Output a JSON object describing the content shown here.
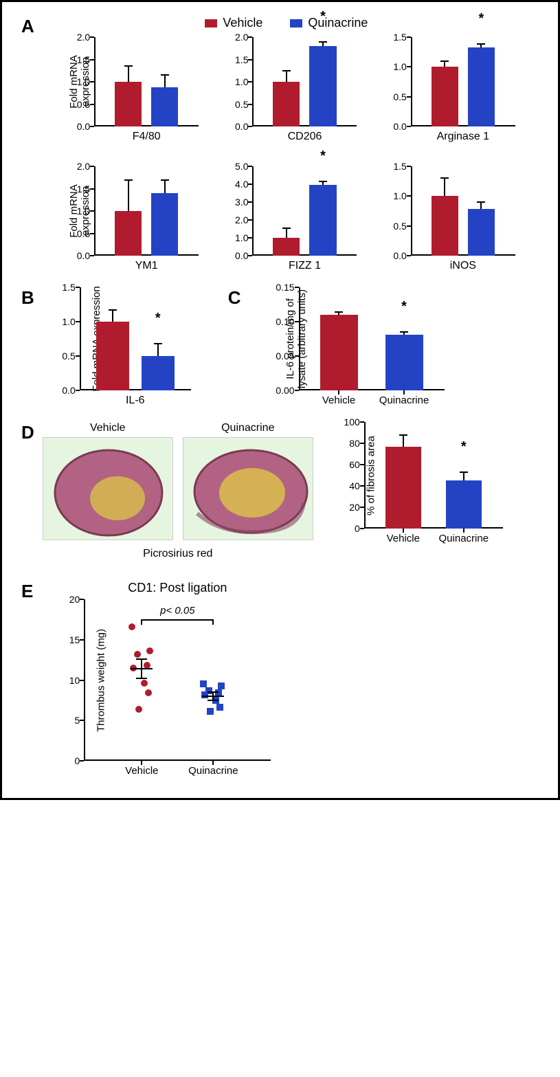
{
  "colors": {
    "vehicle": "#b01c2e",
    "quinacrine": "#2443c4",
    "axis": "#000000",
    "background": "#ffffff",
    "histology_bg": "#e6f5df",
    "tissue_main": "#b26383",
    "tissue_light": "#d8b94f"
  },
  "legend": {
    "vehicle": "Vehicle",
    "quinacrine": "Quinacrine"
  },
  "panels": {
    "A": {
      "label": "A",
      "ylab": "Fold mRNA\nexpression",
      "charts": [
        {
          "name": "F4/80",
          "ymax": 2.0,
          "ystep": 0.5,
          "vehicle": 1.0,
          "vehicle_err": 0.35,
          "quin": 0.88,
          "quin_err": 0.27,
          "sig": false
        },
        {
          "name": "CD206",
          "ymax": 2.0,
          "ystep": 0.5,
          "vehicle": 1.0,
          "vehicle_err": 0.25,
          "quin": 1.8,
          "quin_err": 0.1,
          "sig": true
        },
        {
          "name": "Arginase 1",
          "ymax": 1.5,
          "ystep": 0.5,
          "vehicle": 1.0,
          "vehicle_err": 0.1,
          "quin": 1.33,
          "quin_err": 0.06,
          "sig": true
        },
        {
          "name": "YM1",
          "ymax": 2.0,
          "ystep": 0.5,
          "vehicle": 1.0,
          "vehicle_err": 0.7,
          "quin": 1.4,
          "quin_err": 0.3,
          "sig": false
        },
        {
          "name": "FIZZ 1",
          "ymax": 5.0,
          "ystep": 1.0,
          "vehicle": 1.0,
          "vehicle_err": 0.55,
          "quin": 3.95,
          "quin_err": 0.2,
          "sig": true
        },
        {
          "name": "iNOS",
          "ymax": 1.5,
          "ystep": 0.5,
          "vehicle": 1.0,
          "vehicle_err": 0.3,
          "quin": 0.78,
          "quin_err": 0.12,
          "sig": false
        }
      ]
    },
    "B": {
      "label": "B",
      "ylab": "Fold mRNA expression",
      "chart": {
        "name": "IL-6",
        "ymax": 1.5,
        "ystep": 0.5,
        "vehicle": 1.0,
        "vehicle_err": 0.17,
        "quin": 0.5,
        "quin_err": 0.18,
        "sig": true
      }
    },
    "C": {
      "label": "C",
      "ylab": "IL-6 protein/mg of\nlysate (arbitrary units)",
      "chart": {
        "name": "",
        "ymax": 0.15,
        "ystep": 0.05,
        "vehicle": 0.11,
        "vehicle_err": 0.004,
        "quin": 0.081,
        "quin_err": 0.004,
        "sig": true
      },
      "xticks": [
        "Vehicle",
        "Quinacrine"
      ]
    },
    "D": {
      "label": "D",
      "image_labels": {
        "vehicle": "Vehicle",
        "quinacrine": "Quinacrine",
        "stain": "Picrosirius red"
      },
      "chart": {
        "name": "",
        "ylab": "% of fibrosis area",
        "ymax": 100,
        "ystep": 20,
        "vehicle": 77,
        "vehicle_err": 11,
        "quin": 45,
        "quin_err": 8,
        "sig": true
      },
      "xticks": [
        "Vehicle",
        "Quinacrine"
      ]
    },
    "E": {
      "label": "E",
      "title": "CD1: Post ligation",
      "ylab": "Thrombus weight (mg)",
      "ymax": 20,
      "ystep": 5,
      "ymin": 0,
      "p_text": "p< 0.05",
      "xticks": [
        "Vehicle",
        "Quinacrine"
      ],
      "vehicle_points": [
        16.6,
        13.6,
        13.2,
        11.8,
        11.5,
        9.6,
        8.4,
        6.4
      ],
      "vehicle_mean": 11.4,
      "vehicle_err": 1.2,
      "quin_points": [
        9.5,
        9.3,
        8.7,
        8.4,
        8.2,
        7.5,
        6.6,
        6.1
      ],
      "quin_mean": 8.0,
      "quin_err": 0.5
    }
  },
  "typography": {
    "panel_label_fontsize": 26,
    "axis_label_fontsize": 15,
    "tick_fontsize": 14,
    "legend_fontsize": 18
  }
}
